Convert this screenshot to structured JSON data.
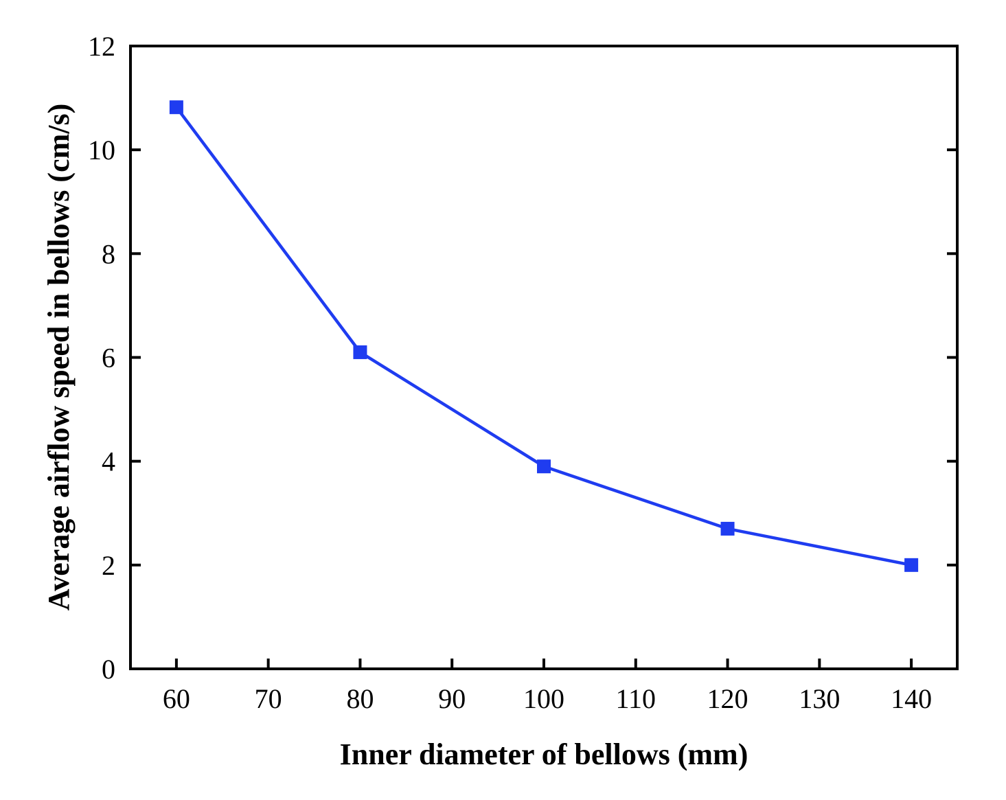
{
  "chart_data": {
    "type": "line",
    "title": "",
    "xlabel": "Inner diameter of bellows (mm)",
    "ylabel": "Average airflow speed in bellows (cm/s)",
    "xlim": [
      55,
      145
    ],
    "ylim": [
      0,
      12
    ],
    "xticks": [
      60,
      70,
      80,
      90,
      100,
      110,
      120,
      130,
      140
    ],
    "yticks": [
      0,
      2,
      4,
      6,
      8,
      10,
      12
    ],
    "grid": false,
    "legend": "none",
    "series": [
      {
        "color": "#1f3cf0",
        "marker": "square",
        "x": [
          60,
          80,
          100,
          120,
          140
        ],
        "y": [
          10.82,
          6.1,
          3.9,
          2.7,
          2.0
        ]
      }
    ]
  }
}
